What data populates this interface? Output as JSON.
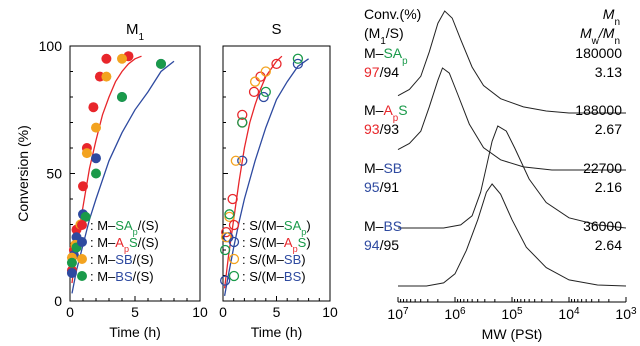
{
  "chart_data": [
    {
      "type": "scatter",
      "panel_label": "M",
      "panel_sub": "1",
      "xlabel": "Time (h)",
      "ylabel": "Conversion (%)",
      "xlim": [
        0,
        10
      ],
      "ylim": [
        0,
        100
      ],
      "xticks": [
        "0",
        "5",
        "10"
      ],
      "yticks": [
        "0",
        "50",
        "100"
      ],
      "series": [
        {
          "name": "M–SAp/(S)",
          "marker": "filled",
          "color": "#e8262b",
          "points": [
            [
              0.15,
              12
            ],
            [
              0.3,
              20
            ],
            [
              0.5,
              28
            ],
            [
              1.0,
              45
            ],
            [
              1.3,
              60
            ],
            [
              1.8,
              76
            ],
            [
              2.3,
              88
            ],
            [
              2.8,
              95
            ],
            [
              4.5,
              96
            ]
          ]
        },
        {
          "name": "M–ApS/(S)",
          "marker": "filled",
          "color": "#2e4aa0",
          "points": [
            [
              0.15,
              11
            ],
            [
              0.3,
              18
            ],
            [
              0.5,
              25
            ],
            [
              1.0,
              34
            ],
            [
              2.0,
              56
            ],
            [
              4.0,
              80
            ],
            [
              7.0,
              93
            ]
          ]
        },
        {
          "name": "M–SB/(S)",
          "marker": "filled",
          "color": "#f3a320",
          "points": [
            [
              0.15,
              17
            ],
            [
              0.4,
              22
            ],
            [
              0.8,
              30
            ],
            [
              1.3,
              58
            ],
            [
              2.0,
              68
            ],
            [
              2.8,
              88
            ],
            [
              4.0,
              95
            ]
          ]
        },
        {
          "name": "M–BS/(S)",
          "marker": "filled",
          "color": "#1a9a4a",
          "points": [
            [
              0.15,
              15
            ],
            [
              0.5,
              21
            ],
            [
              1.2,
              33
            ],
            [
              2.0,
              50
            ],
            [
              4.0,
              80
            ],
            [
              7.0,
              93
            ]
          ]
        }
      ],
      "fits": [
        {
          "color": "#e8262b",
          "points": [
            [
              0.15,
              7
            ],
            [
              0.5,
              22
            ],
            [
              1,
              37
            ],
            [
              1.5,
              52
            ],
            [
              2,
              63
            ],
            [
              2.5,
              73
            ],
            [
              3,
              80
            ],
            [
              3.5,
              86
            ],
            [
              4,
              90
            ],
            [
              4.5,
              93
            ],
            [
              5,
              95
            ],
            [
              5.5,
              96
            ]
          ]
        },
        {
          "color": "#2e4aa0",
          "points": [
            [
              0.15,
              3
            ],
            [
              0.5,
              12
            ],
            [
              1,
              22
            ],
            [
              1.5,
              32
            ],
            [
              2,
              40
            ],
            [
              3,
              55
            ],
            [
              4,
              66
            ],
            [
              5,
              75
            ],
            [
              6,
              82
            ],
            [
              7,
              90
            ],
            [
              8,
              94
            ]
          ]
        }
      ],
      "legend_placement": "bottom-right",
      "legend": [
        {
          "marker_color": "#e8262b",
          "marker": "filled",
          "prefix": ": M–",
          "parts": [
            {
              "text": "SA",
              "color": "#1a9a4a"
            },
            {
              "text": "p",
              "color": "#1a9a4a",
              "sub": true
            },
            {
              "text": "/(S)",
              "color": "#000"
            }
          ]
        },
        {
          "marker_color": "#2e4aa0",
          "marker": "filled",
          "prefix": ": M–",
          "parts": [
            {
              "text": "A",
              "color": "#e8262b"
            },
            {
              "text": "p",
              "color": "#e8262b",
              "sub": true
            },
            {
              "text": "S",
              "color": "#1a9a4a"
            },
            {
              "text": "/(S)",
              "color": "#000"
            }
          ]
        },
        {
          "marker_color": "#f3a320",
          "marker": "filled",
          "prefix": ": M–",
          "parts": [
            {
              "text": "SB",
              "color": "#2e4aa0"
            },
            {
              "text": "/(S)",
              "color": "#000"
            }
          ]
        },
        {
          "marker_color": "#1a9a4a",
          "marker": "filled",
          "prefix": ": M–",
          "parts": [
            {
              "text": "BS",
              "color": "#2e4aa0"
            },
            {
              "text": "/(S)",
              "color": "#000"
            }
          ]
        }
      ]
    },
    {
      "type": "scatter",
      "panel_label": "S",
      "xlabel": "Time (h)",
      "xlim": [
        0,
        10
      ],
      "ylim": [
        0,
        100
      ],
      "xticks": [
        "0",
        "5",
        "10"
      ],
      "series": [
        {
          "name": "S/(M–SAp)",
          "marker": "open",
          "color": "#e8262b",
          "points": [
            [
              0.3,
              27
            ],
            [
              0.9,
              40
            ],
            [
              1.8,
              70
            ],
            [
              1.8,
              73
            ],
            [
              2.9,
              82
            ],
            [
              3.5,
              88
            ],
            [
              5.0,
              93
            ]
          ]
        },
        {
          "name": "S/(M–ApS)",
          "marker": "open",
          "color": "#2e4aa0",
          "points": [
            [
              0.2,
              8
            ],
            [
              0.5,
              25
            ],
            [
              1.8,
              55
            ],
            [
              3.8,
              80
            ],
            [
              7.0,
              93
            ]
          ]
        },
        {
          "name": "S/(M–SB)",
          "marker": "open",
          "color": "#f3a320",
          "points": [
            [
              0.3,
              25
            ],
            [
              0.6,
              33
            ],
            [
              1.2,
              55
            ],
            [
              3.0,
              86
            ],
            [
              4.0,
              90
            ]
          ]
        },
        {
          "name": "S/(M–BS)",
          "marker": "open",
          "color": "#1a9a4a",
          "points": [
            [
              0.2,
              20
            ],
            [
              0.6,
              34
            ],
            [
              1.8,
              70
            ],
            [
              4.0,
              82
            ],
            [
              7.0,
              95
            ]
          ]
        }
      ],
      "fits": [
        {
          "color": "#e8262b",
          "points": [
            [
              0.15,
              5
            ],
            [
              0.5,
              17
            ],
            [
              1,
              32
            ],
            [
              1.5,
              47
            ],
            [
              2,
              60
            ],
            [
              2.5,
              70
            ],
            [
              3,
              77
            ],
            [
              3.5,
              83
            ],
            [
              4,
              88
            ],
            [
              4.5,
              91
            ],
            [
              5,
              94
            ],
            [
              5.5,
              96
            ]
          ]
        },
        {
          "color": "#2e4aa0",
          "points": [
            [
              0.15,
              2
            ],
            [
              0.5,
              10
            ],
            [
              1,
              21
            ],
            [
              1.5,
              31
            ],
            [
              2,
              40
            ],
            [
              3,
              55
            ],
            [
              4,
              68
            ],
            [
              5,
              79
            ],
            [
              6,
              86
            ],
            [
              7,
              92
            ],
            [
              8,
              95
            ]
          ]
        }
      ],
      "legend_placement": "bottom-right",
      "legend": [
        {
          "marker_color": "#e8262b",
          "marker": "open",
          "prefix": ": S/(M–",
          "parts": [
            {
              "text": "SA",
              "color": "#1a9a4a"
            },
            {
              "text": "p",
              "color": "#1a9a4a",
              "sub": true
            },
            {
              "text": ")",
              "color": "#000"
            }
          ]
        },
        {
          "marker_color": "#2e4aa0",
          "marker": "open",
          "prefix": ": S/(M–",
          "parts": [
            {
              "text": "A",
              "color": "#e8262b"
            },
            {
              "text": "p",
              "color": "#e8262b",
              "sub": true
            },
            {
              "text": "S",
              "color": "#1a9a4a"
            },
            {
              "text": ")",
              "color": "#000"
            }
          ]
        },
        {
          "marker_color": "#f3a320",
          "marker": "open",
          "prefix": ": S/(M–",
          "parts": [
            {
              "text": "SB",
              "color": "#2e4aa0"
            },
            {
              "text": ")",
              "color": "#000"
            }
          ]
        },
        {
          "marker_color": "#1a9a4a",
          "marker": "open",
          "prefix": ": S/(M–",
          "parts": [
            {
              "text": "BS",
              "color": "#2e4aa0"
            },
            {
              "text": ")",
              "color": "#000"
            }
          ]
        }
      ]
    },
    {
      "type": "line",
      "xlabel": "MW (PSt)",
      "x_scale": "log-reversed",
      "xlim": [
        10000000,
        1000
      ],
      "xticks": [
        {
          "base": "10",
          "exp": "7",
          "value": 10000000
        },
        {
          "base": "10",
          "exp": "6",
          "value": 1000000
        },
        {
          "base": "10",
          "exp": "5",
          "value": 100000
        },
        {
          "base": "10",
          "exp": "4",
          "value": 10000
        },
        {
          "base": "10",
          "exp": "3",
          "value": 1000
        }
      ],
      "header_left": [
        "Conv.(%)",
        "(M1/S)"
      ],
      "header_right_line1": "Mn",
      "header_right_line2": "Mw/Mn",
      "traces": [
        {
          "label_parts": [
            {
              "text": "M–",
              "color": "#000"
            },
            {
              "text": "SA",
              "color": "#1a9a4a"
            },
            {
              "text": "p",
              "color": "#1a9a4a",
              "sub": true
            }
          ],
          "conv_m1": "97",
          "conv_m1_color": "#e8262b",
          "conv_s": "/94",
          "mn": "180000",
          "pdi": "3.13",
          "curve_logmw_height": [
            [
              7,
              0.17
            ],
            [
              6.8,
              0.23
            ],
            [
              6.6,
              0.36
            ],
            [
              6.45,
              0.6
            ],
            [
              6.3,
              0.88
            ],
            [
              6.18,
              1.0
            ],
            [
              6.05,
              0.93
            ],
            [
              5.9,
              0.72
            ],
            [
              5.7,
              0.45
            ],
            [
              5.5,
              0.27
            ],
            [
              5.2,
              0.14
            ],
            [
              4.8,
              0.06
            ],
            [
              4.4,
              0.02
            ],
            [
              4.0,
              0.0
            ],
            [
              3.0,
              0.0
            ]
          ]
        },
        {
          "label_parts": [
            {
              "text": "M–",
              "color": "#000"
            },
            {
              "text": "A",
              "color": "#e8262b"
            },
            {
              "text": "p",
              "color": "#e8262b",
              "sub": true
            },
            {
              "text": "S",
              "color": "#1a9a4a"
            }
          ],
          "conv_m1": "93",
          "conv_m1_color": "#e8262b",
          "conv_s": "/93",
          "mn": "188000",
          "pdi": "2.67",
          "curve_logmw_height": [
            [
              7,
              0.2
            ],
            [
              6.8,
              0.26
            ],
            [
              6.6,
              0.38
            ],
            [
              6.45,
              0.62
            ],
            [
              6.3,
              0.88
            ],
            [
              6.22,
              1.0
            ],
            [
              6.1,
              0.95
            ],
            [
              5.95,
              0.74
            ],
            [
              5.75,
              0.45
            ],
            [
              5.5,
              0.22
            ],
            [
              5.2,
              0.1
            ],
            [
              4.8,
              0.03
            ],
            [
              4.3,
              0.0
            ],
            [
              3.0,
              0.0
            ]
          ]
        },
        {
          "label_parts": [
            {
              "text": "M–",
              "color": "#000"
            },
            {
              "text": "SB",
              "color": "#2e4aa0"
            }
          ],
          "conv_m1": "95",
          "conv_m1_color": "#2e4aa0",
          "conv_s": "/91",
          "mn": "22700",
          "pdi": "2.16",
          "curve_logmw_height": [
            [
              7,
              0.0
            ],
            [
              6.2,
              0.0
            ],
            [
              5.9,
              0.03
            ],
            [
              5.7,
              0.12
            ],
            [
              5.55,
              0.35
            ],
            [
              5.45,
              0.6
            ],
            [
              5.35,
              0.85
            ],
            [
              5.25,
              1.0
            ],
            [
              5.1,
              0.95
            ],
            [
              4.95,
              0.78
            ],
            [
              4.7,
              0.48
            ],
            [
              4.4,
              0.25
            ],
            [
              4.0,
              0.1
            ],
            [
              3.5,
              0.03
            ],
            [
              3.0,
              0.0
            ]
          ]
        },
        {
          "label_parts": [
            {
              "text": "M–",
              "color": "#000"
            },
            {
              "text": "BS",
              "color": "#2e4aa0"
            }
          ],
          "conv_m1": "94",
          "conv_m1_color": "#2e4aa0",
          "conv_s": "/95",
          "mn": "36000",
          "pdi": "2.64",
          "curve_logmw_height": [
            [
              7,
              0.0
            ],
            [
              6.5,
              0.0
            ],
            [
              6.2,
              0.03
            ],
            [
              6.0,
              0.12
            ],
            [
              5.8,
              0.35
            ],
            [
              5.6,
              0.65
            ],
            [
              5.45,
              0.92
            ],
            [
              5.35,
              1.0
            ],
            [
              5.2,
              0.9
            ],
            [
              5.0,
              0.65
            ],
            [
              4.75,
              0.38
            ],
            [
              4.4,
              0.18
            ],
            [
              4.0,
              0.06
            ],
            [
              3.5,
              0.01
            ],
            [
              3.0,
              0.0
            ]
          ]
        }
      ]
    }
  ]
}
